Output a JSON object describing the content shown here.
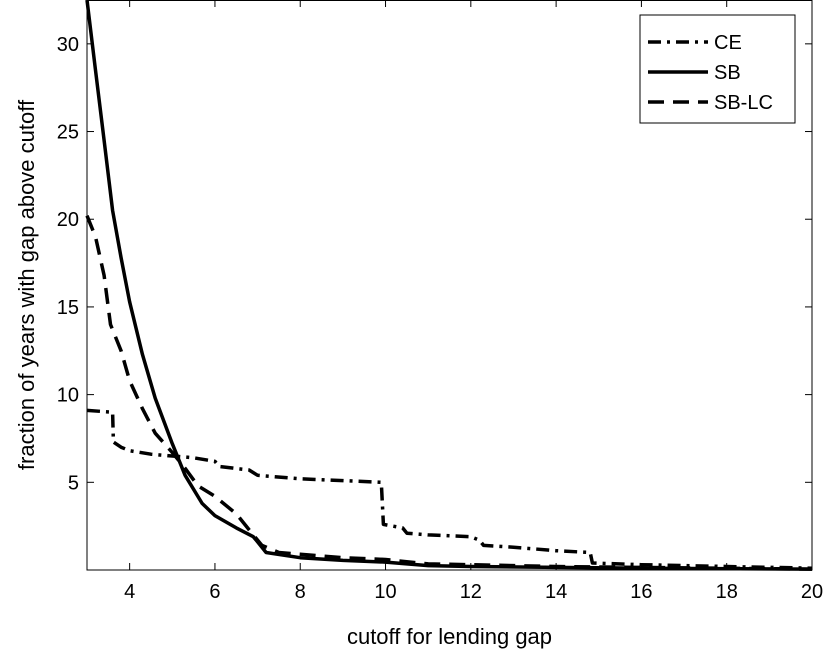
{
  "chart_data": {
    "type": "line",
    "title": "",
    "xlabel": "cutoff for lending gap",
    "ylabel": "fraction of years with gap above cutoff",
    "xlim": [
      3,
      20
    ],
    "ylim": [
      0,
      32.5
    ],
    "xticks": [
      4,
      6,
      8,
      10,
      12,
      14,
      16,
      18,
      20
    ],
    "yticks": [
      5,
      10,
      15,
      20,
      25,
      30
    ],
    "xtick_labels": [
      "4",
      "6",
      "8",
      "10",
      "12",
      "14",
      "16",
      "18",
      "20"
    ],
    "ytick_labels": [
      "5",
      "10",
      "15",
      "20",
      "25",
      "30"
    ],
    "grid": false,
    "legend_position": "top-right",
    "series": [
      {
        "name": "CE",
        "line_style": "dash-dot",
        "color": "#000000",
        "points": [
          [
            3.0,
            9.1
          ],
          [
            3.6,
            9.0
          ],
          [
            3.62,
            7.3
          ],
          [
            3.8,
            7.0
          ],
          [
            4.0,
            6.8
          ],
          [
            4.5,
            6.6
          ],
          [
            5.0,
            6.5
          ],
          [
            5.5,
            6.4
          ],
          [
            6.0,
            6.2
          ],
          [
            6.1,
            5.9
          ],
          [
            6.8,
            5.7
          ],
          [
            7.0,
            5.4
          ],
          [
            8.0,
            5.2
          ],
          [
            9.0,
            5.1
          ],
          [
            9.9,
            5.0
          ],
          [
            9.95,
            2.6
          ],
          [
            10.4,
            2.4
          ],
          [
            10.5,
            2.1
          ],
          [
            11.0,
            2.0
          ],
          [
            12.0,
            1.9
          ],
          [
            12.2,
            1.7
          ],
          [
            12.3,
            1.4
          ],
          [
            13.0,
            1.3
          ],
          [
            14.0,
            1.1
          ],
          [
            14.8,
            1.0
          ],
          [
            14.85,
            0.4
          ],
          [
            16.0,
            0.3
          ],
          [
            18.0,
            0.2
          ],
          [
            20.0,
            0.1
          ]
        ]
      },
      {
        "name": "SB",
        "line_style": "solid",
        "color": "#000000",
        "points": [
          [
            3.0,
            32.5
          ],
          [
            3.2,
            28.5
          ],
          [
            3.4,
            24.5
          ],
          [
            3.6,
            20.5
          ],
          [
            3.8,
            17.8
          ],
          [
            4.0,
            15.3
          ],
          [
            4.3,
            12.3
          ],
          [
            4.6,
            9.8
          ],
          [
            5.0,
            7.2
          ],
          [
            5.3,
            5.4
          ],
          [
            5.7,
            3.8
          ],
          [
            6.0,
            3.1
          ],
          [
            6.5,
            2.4
          ],
          [
            6.9,
            1.9
          ],
          [
            7.0,
            1.6
          ],
          [
            7.2,
            1.0
          ],
          [
            8.0,
            0.7
          ],
          [
            9.0,
            0.55
          ],
          [
            10.0,
            0.45
          ],
          [
            11.0,
            0.25
          ],
          [
            12.0,
            0.2
          ],
          [
            14.0,
            0.15
          ],
          [
            16.0,
            0.1
          ],
          [
            20.0,
            0.05
          ]
        ]
      },
      {
        "name": "SB-LC",
        "line_style": "dashed",
        "color": "#000000",
        "points": [
          [
            3.0,
            20.2
          ],
          [
            3.2,
            19.0
          ],
          [
            3.4,
            16.8
          ],
          [
            3.55,
            14.0
          ],
          [
            3.8,
            12.5
          ],
          [
            4.0,
            10.8
          ],
          [
            4.3,
            9.2
          ],
          [
            4.6,
            7.8
          ],
          [
            5.0,
            6.7
          ],
          [
            5.3,
            5.8
          ],
          [
            5.6,
            4.8
          ],
          [
            6.0,
            4.2
          ],
          [
            6.5,
            3.2
          ],
          [
            6.9,
            2.0
          ],
          [
            7.1,
            1.4
          ],
          [
            7.5,
            1.0
          ],
          [
            8.0,
            0.9
          ],
          [
            9.0,
            0.7
          ],
          [
            10.0,
            0.6
          ],
          [
            11.0,
            0.35
          ],
          [
            12.0,
            0.3
          ],
          [
            14.0,
            0.2
          ],
          [
            16.0,
            0.15
          ],
          [
            18.0,
            0.1
          ],
          [
            20.0,
            0.05
          ]
        ]
      }
    ]
  }
}
